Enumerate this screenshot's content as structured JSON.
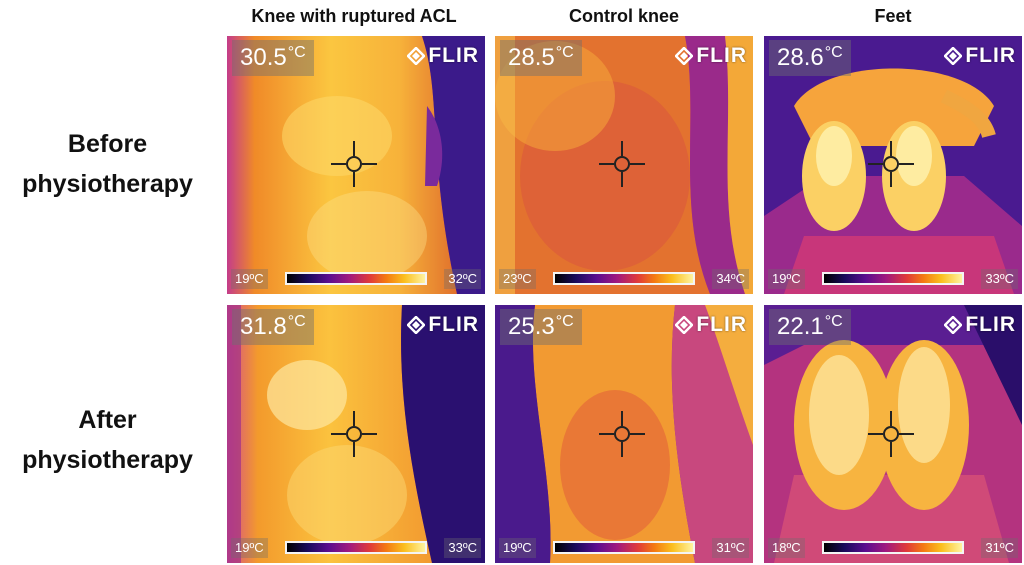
{
  "columns": [
    "Knee with ruptured ACL",
    "Control knee",
    "Feet"
  ],
  "rows": [
    {
      "label": "Before physiotherapy",
      "images": [
        {
          "temperature": "30.5",
          "unit": "°C",
          "brand": "FLIR",
          "scale_min": "19ºC",
          "scale_max": "32ºC"
        },
        {
          "temperature": "28.5",
          "unit": "°C",
          "brand": "FLIR",
          "scale_min": "23ºC",
          "scale_max": "34ºC"
        },
        {
          "temperature": "28.6",
          "unit": "°C",
          "brand": "FLIR",
          "scale_min": "19ºC",
          "scale_max": "33ºC"
        }
      ]
    },
    {
      "label": "After physiotherapy",
      "images": [
        {
          "temperature": "31.8",
          "unit": "°C",
          "brand": "FLIR",
          "scale_min": "19ºC",
          "scale_max": "33ºC"
        },
        {
          "temperature": "25.3",
          "unit": "°C",
          "brand": "FLIR",
          "scale_min": "19ºC",
          "scale_max": "31ºC"
        },
        {
          "temperature": "22.1",
          "unit": "°C",
          "brand": "FLIR",
          "scale_min": "18ºC",
          "scale_max": "31ºC"
        }
      ]
    }
  ],
  "colors": {
    "ironbow_low": "#1a0a5c",
    "ironbow_mid": "#e03a3a",
    "ironbow_high": "#fbbf1e",
    "ironbow_hot": "#fff3a0"
  }
}
